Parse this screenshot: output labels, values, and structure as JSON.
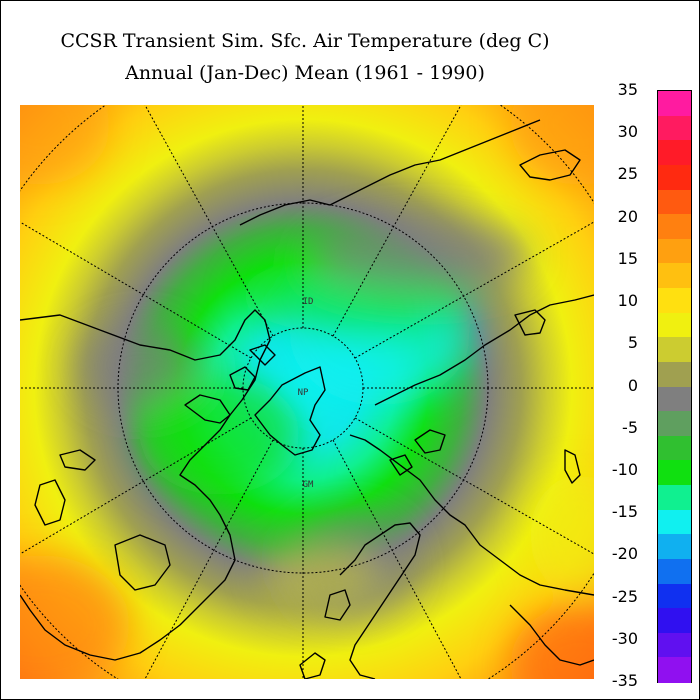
{
  "title": "CCSR Transient Sim. Sfc. Air Temperature (deg C)",
  "subtitle": "Annual (Jan-Dec) Mean (1961 - 1990)",
  "map_labels": {
    "north_pole": "NP",
    "dateline": "ID",
    "greenwich": "GM"
  },
  "colorbar": {
    "ticks": [
      "35",
      "30",
      "25",
      "20",
      "15",
      "10",
      "5",
      "0",
      "-5",
      "-10",
      "-15",
      "-20",
      "-25",
      "-30",
      "-35"
    ],
    "color_bins": [
      "#ff1ba0",
      "#ff1b60",
      "#ff1b28",
      "#ff2a10",
      "#ff5a10",
      "#ff8010",
      "#ffa010",
      "#ffc010",
      "#ffe010",
      "#f0f010",
      "#cccc30",
      "#a0a050",
      "#7f7f7f",
      "#5f9f5f",
      "#30c030",
      "#10e010",
      "#10f090",
      "#10f0f0",
      "#10b0f0",
      "#1070f0",
      "#1030f0",
      "#3010f0",
      "#6010f0",
      "#9010f0"
    ]
  }
}
